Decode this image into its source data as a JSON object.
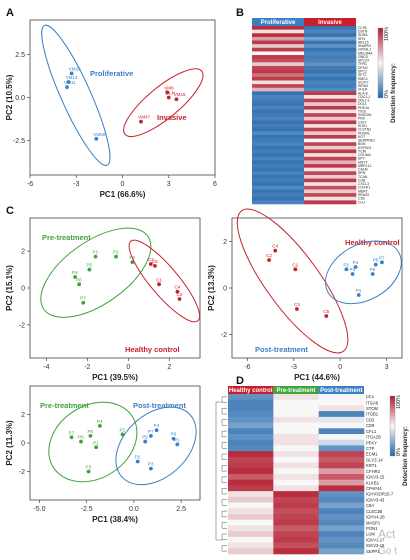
{
  "panel_letters": [
    "A",
    "B",
    "C",
    "D"
  ],
  "watermark": [
    "Act",
    "Go t"
  ],
  "colors": {
    "proliferative": "#3b7fc4",
    "invasive": "#c8202a",
    "pretreatment": "#3da33a",
    "healthy": "#c8202a",
    "posttreatment": "#3b7fc4"
  },
  "chart_data": [
    {
      "id": "A",
      "type": "scatter",
      "xlabel": "PC1 (66.6%)",
      "ylabel": "PC2 (10.5%)",
      "xlim": [
        -6,
        6
      ],
      "ylim": [
        -4.5,
        4.5
      ],
      "xticks": [
        "-6",
        "-3",
        "0",
        "3",
        "6"
      ],
      "yticks": [
        "2.5",
        "0.0",
        "-2.5"
      ],
      "groups": [
        {
          "name": "Proliferative",
          "color": "#3b7fc4",
          "points": [
            {
              "label": "VM26",
              "x": -3.3,
              "y": 1.4
            },
            {
              "label": "VM14",
              "x": -3.5,
              "y": 0.9
            },
            {
              "label": "VM11",
              "x": -3.6,
              "y": 0.6
            },
            {
              "label": "VM58",
              "x": -1.7,
              "y": -2.4
            }
          ]
        },
        {
          "name": "Invasive",
          "color": "#c8202a",
          "points": [
            {
              "label": "VM6",
              "x": 2.9,
              "y": 0.3
            },
            {
              "label": "DLN",
              "x": 3.0,
              "y": 0.0
            },
            {
              "label": "VM15",
              "x": 3.5,
              "y": -0.1
            },
            {
              "label": "VM47",
              "x": 1.2,
              "y": -1.4
            }
          ]
        }
      ]
    },
    {
      "id": "B",
      "type": "heatmap",
      "columns": [
        "Proliferative",
        "Invasive"
      ],
      "legend_title": "Detection frequency",
      "legend_ticks": [
        "100%",
        "0%"
      ],
      "genes": [
        "CLTB",
        "DSTN",
        "SDHA",
        "SFN",
        "ARL15",
        "SNAPIN",
        "GPX4L1",
        "MELSMA",
        "GNG3",
        "SPC24",
        "TFRC",
        "DFSI2",
        "SPC2",
        "SFT2",
        "EMC4",
        "SC077",
        "KIRA3",
        "VHLR",
        "ALA-8",
        "CDC1-1",
        "DDL1-1",
        "DCL1",
        "PDE1A",
        "ITGS",
        "SNSCB1",
        "PNX",
        "CALT",
        "KOK1",
        "CLSTN2",
        "PDGR1",
        "KOT",
        "SERPINE1",
        "BGN",
        "KSPG01",
        "TCIN",
        "COL5A2",
        "EPY",
        "MSYT",
        "MRPL12",
        "CALM",
        "SPN",
        "TCAN",
        "CUB",
        "CXCL3",
        "COX4I1",
        "MERT",
        "KRAS2",
        "C1B",
        "CLU"
      ],
      "values": [
        [
          0.95,
          0.05
        ],
        [
          0.55,
          0.1
        ],
        [
          0.95,
          0.05
        ],
        [
          0.7,
          0.2
        ],
        [
          0.92,
          0.05
        ],
        [
          0.6,
          0.15
        ],
        [
          0.92,
          0.05
        ],
        [
          0.5,
          0.1
        ],
        [
          0.92,
          0.08
        ],
        [
          0.88,
          0.1
        ],
        [
          0.6,
          0.15
        ],
        [
          0.9,
          0.08
        ],
        [
          0.93,
          0.05
        ],
        [
          0.8,
          0.1
        ],
        [
          0.92,
          0.05
        ],
        [
          0.55,
          0.1
        ],
        [
          0.9,
          0.08
        ],
        [
          0.65,
          0.12
        ],
        [
          0.05,
          0.92
        ],
        [
          0.1,
          0.55
        ],
        [
          0.08,
          0.9
        ],
        [
          0.05,
          0.6
        ],
        [
          0.1,
          0.92
        ],
        [
          0.05,
          0.55
        ],
        [
          0.08,
          0.9
        ],
        [
          0.1,
          0.6
        ],
        [
          0.05,
          0.92
        ],
        [
          0.08,
          0.55
        ],
        [
          0.05,
          0.9
        ],
        [
          0.12,
          0.6
        ],
        [
          0.05,
          0.92
        ],
        [
          0.08,
          0.5
        ],
        [
          0.1,
          0.9
        ],
        [
          0.05,
          0.6
        ],
        [
          0.08,
          0.92
        ],
        [
          0.05,
          0.55
        ],
        [
          0.1,
          0.9
        ],
        [
          0.05,
          0.65
        ],
        [
          0.08,
          0.92
        ],
        [
          0.05,
          0.55
        ],
        [
          0.1,
          0.9
        ],
        [
          0.05,
          0.6
        ],
        [
          0.08,
          0.92
        ],
        [
          0.05,
          0.55
        ],
        [
          0.12,
          0.88
        ],
        [
          0.05,
          0.6
        ],
        [
          0.08,
          0.9
        ],
        [
          0.05,
          0.55
        ],
        [
          0.1,
          0.92
        ]
      ]
    },
    {
      "id": "C1",
      "type": "scatter",
      "xlabel": "PC1 (39.5%)",
      "ylabel": "PC2 (15.1%)",
      "xlim": [
        -4.8,
        3.5
      ],
      "ylim": [
        -3.8,
        3.8
      ],
      "xticks": [
        "-4",
        "-2",
        "0",
        "2"
      ],
      "yticks": [
        "2",
        "0",
        "-2"
      ],
      "groups": [
        {
          "name": "Pre-treatment",
          "color": "#3da33a",
          "points": [
            {
              "label": "P1",
              "x": -1.6,
              "y": 1.7
            },
            {
              "label": "P2",
              "x": -0.6,
              "y": 1.7
            },
            {
              "label": "P3",
              "x": 0.2,
              "y": 1.4
            },
            {
              "label": "P4",
              "x": -2.6,
              "y": 0.6
            },
            {
              "label": "P6",
              "x": -2.4,
              "y": 0.2
            },
            {
              "label": "P5",
              "x": -1.9,
              "y": 1.0
            },
            {
              "label": "P7",
              "x": -2.2,
              "y": -0.8
            }
          ]
        },
        {
          "name": "Healthy control",
          "color": "#c8202a",
          "points": [
            {
              "label": "C3",
              "x": 1.1,
              "y": 1.3
            },
            {
              "label": "C5",
              "x": 1.3,
              "y": 1.2
            },
            {
              "label": "C1",
              "x": 1.5,
              "y": 0.2
            },
            {
              "label": "C4",
              "x": 2.4,
              "y": -0.2
            },
            {
              "label": "C2",
              "x": 2.5,
              "y": -0.6
            }
          ]
        }
      ]
    },
    {
      "id": "C2",
      "type": "scatter",
      "xlabel": "PC1 (44.6%)",
      "ylabel": "PC2 (13.3%)",
      "xlim": [
        -7,
        4
      ],
      "ylim": [
        -3,
        3
      ],
      "xticks": [
        "-6",
        "-3",
        "0",
        "3"
      ],
      "yticks": [
        "2",
        "0",
        "-2"
      ],
      "groups": [
        {
          "name": "Healthy control",
          "color": "#c8202a",
          "points": [
            {
              "label": "C4",
              "x": -4.2,
              "y": 1.6
            },
            {
              "label": "C2",
              "x": -4.6,
              "y": 1.2
            },
            {
              "label": "C1",
              "x": -2.9,
              "y": 0.8
            },
            {
              "label": "C3",
              "x": -2.8,
              "y": -0.9
            },
            {
              "label": "C5",
              "x": -0.9,
              "y": -1.2
            }
          ]
        },
        {
          "name": "Post-treatment",
          "color": "#3b7fc4",
          "points": [
            {
              "label": "P2",
              "x": 0.4,
              "y": 0.8
            },
            {
              "label": "P3",
              "x": 0.8,
              "y": 0.6
            },
            {
              "label": "P4",
              "x": 1.0,
              "y": 0.9
            },
            {
              "label": "P5",
              "x": 2.3,
              "y": 1.0
            },
            {
              "label": "P6",
              "x": 2.1,
              "y": 0.6
            },
            {
              "label": "P7",
              "x": 2.7,
              "y": 1.1
            },
            {
              "label": "P1",
              "x": 1.2,
              "y": -0.3
            }
          ]
        }
      ]
    },
    {
      "id": "C3",
      "type": "scatter",
      "xlabel": "PC1 (38.4%)",
      "ylabel": "PC2 (11.3%)",
      "xlim": [
        -5.5,
        3.5
      ],
      "ylim": [
        -4,
        4
      ],
      "xticks": [
        "-5.0",
        "-2.5",
        "0.0",
        "2.5"
      ],
      "yticks": [
        "2",
        "0",
        "-2"
      ],
      "groups": [
        {
          "name": "Pre-treatment",
          "color": "#3da33a",
          "points": [
            {
              "label": "P4",
              "x": -1.8,
              "y": 1.2
            },
            {
              "label": "P5",
              "x": -2.3,
              "y": 0.5
            },
            {
              "label": "P7",
              "x": -3.3,
              "y": 0.4
            },
            {
              "label": "P6",
              "x": -2.8,
              "y": 0.1
            },
            {
              "label": "P1",
              "x": -2.0,
              "y": -0.3
            },
            {
              "label": "P2",
              "x": -0.6,
              "y": 0.6
            },
            {
              "label": "P3",
              "x": -2.4,
              "y": -2.0
            }
          ]
        },
        {
          "name": "Post-treatment",
          "color": "#3b7fc4",
          "points": [
            {
              "label": "P4",
              "x": 1.2,
              "y": 0.9
            },
            {
              "label": "P7",
              "x": 0.9,
              "y": 0.5
            },
            {
              "label": "P6",
              "x": 2.1,
              "y": 0.3
            },
            {
              "label": "P5",
              "x": 0.6,
              "y": 0.1
            },
            {
              "label": "P1",
              "x": 2.3,
              "y": -0.1
            },
            {
              "label": "P2",
              "x": 0.2,
              "y": -1.3
            },
            {
              "label": "P3",
              "x": 0.9,
              "y": -1.8
            }
          ]
        }
      ]
    },
    {
      "id": "D",
      "type": "heatmap",
      "columns": [
        "Healthy control",
        "Pre-treatment",
        "Post-treatment"
      ],
      "legend_title": "Detection frequency",
      "legend_ticks": [
        "100%",
        "0%"
      ],
      "genes": [
        "PF4",
        "ITGA6",
        "STOM",
        "ITGB1",
        "CD2",
        "CD9",
        "CFL1",
        "ITGA2B",
        "PFKY",
        "CTP",
        "ECM1",
        "GLYZ-14",
        "KRT1",
        "CFHR2",
        "IGKV3-15",
        "KLKB1",
        "CPAP44",
        "IGHV3OR15-7",
        "IGKV3-43",
        "C8A",
        "CLEC3B",
        "IGHV4-28",
        "MASP1",
        "PON1",
        "LUM",
        "IGKV1-17",
        "IGKV3-16",
        "SEPP1"
      ],
      "values": [
        [
          0.15,
          0.55,
          0.5
        ],
        [
          0.1,
          0.5,
          0.5
        ],
        [
          0.1,
          0.5,
          0.55
        ],
        [
          0.12,
          0.5,
          0.1
        ],
        [
          0.15,
          0.55,
          0.45
        ],
        [
          0.2,
          0.5,
          0.5
        ],
        [
          0.1,
          0.5,
          0.1
        ],
        [
          0.15,
          0.55,
          0.5
        ],
        [
          0.1,
          0.55,
          0.4
        ],
        [
          0.12,
          0.5,
          0.15
        ],
        [
          0.95,
          0.55,
          0.9
        ],
        [
          0.9,
          0.5,
          0.85
        ],
        [
          0.92,
          0.55,
          0.9
        ],
        [
          0.95,
          0.5,
          0.7
        ],
        [
          0.85,
          0.55,
          0.85
        ],
        [
          0.95,
          0.5,
          0.7
        ],
        [
          0.92,
          0.55,
          0.95
        ],
        [
          0.55,
          0.95,
          0.15
        ],
        [
          0.6,
          0.9,
          0.12
        ],
        [
          0.5,
          0.92,
          0.2
        ],
        [
          0.55,
          0.88,
          0.1
        ],
        [
          0.6,
          0.9,
          0.15
        ],
        [
          0.5,
          0.92,
          0.12
        ],
        [
          0.55,
          0.85,
          0.2
        ],
        [
          0.6,
          0.9,
          0.1
        ],
        [
          0.5,
          0.92,
          0.15
        ],
        [
          0.55,
          0.88,
          0.12
        ],
        [
          0.6,
          0.95,
          0.2
        ]
      ]
    }
  ]
}
